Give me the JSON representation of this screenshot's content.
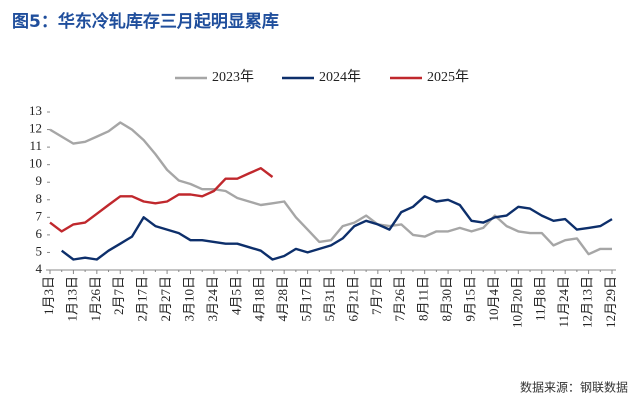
{
  "chart_data": {
    "type": "line",
    "title": "图5：华东冷轧库存三月起明显累库",
    "source": "数据来源：钢联数据",
    "categories": [
      "1月3日",
      null,
      "1月13日",
      null,
      "1月26日",
      null,
      "2月7日",
      null,
      "2月17日",
      null,
      "2月27日",
      null,
      "3月10日",
      null,
      "3月24日",
      null,
      "4月5日",
      null,
      "4月18日",
      null,
      "4月28日",
      null,
      "5月17日",
      null,
      "5月31日",
      null,
      "6月21日",
      null,
      "7月7日",
      null,
      "7月26日",
      null,
      "8月11日",
      null,
      "8月30日",
      null,
      "9月15日",
      null,
      "10月4日",
      null,
      "10月20日",
      null,
      "11月8日",
      null,
      "11月24日",
      null,
      "12月13日",
      null,
      "12月29日"
    ],
    "series": [
      {
        "name": "2023年",
        "color": "#a6a6a6",
        "values": [
          12.0,
          11.6,
          11.2,
          11.3,
          11.6,
          11.9,
          12.4,
          12.0,
          11.4,
          10.6,
          9.7,
          9.1,
          8.9,
          8.6,
          8.6,
          8.5,
          8.1,
          7.9,
          7.7,
          7.8,
          7.9,
          7.0,
          6.3,
          5.6,
          5.7,
          6.5,
          6.7,
          7.1,
          6.6,
          6.5,
          6.6,
          6.0,
          5.9,
          6.2,
          6.2,
          6.4,
          6.2,
          6.4,
          7.1,
          6.5,
          6.2,
          6.1,
          6.1,
          5.4,
          5.7,
          5.8,
          4.9,
          5.2,
          5.2
        ]
      },
      {
        "name": "2024年",
        "color": "#0d2f6b",
        "values": [
          null,
          5.1,
          4.6,
          4.7,
          4.6,
          5.1,
          5.5,
          5.9,
          7.0,
          6.5,
          6.3,
          6.1,
          5.7,
          5.7,
          5.6,
          5.5,
          5.5,
          5.3,
          5.1,
          4.6,
          4.8,
          5.2,
          5.0,
          5.2,
          5.4,
          5.8,
          6.5,
          6.8,
          6.6,
          6.3,
          7.3,
          7.6,
          8.2,
          7.9,
          8.0,
          7.7,
          6.8,
          6.7,
          7.0,
          7.1,
          7.6,
          7.5,
          7.1,
          6.8,
          6.9,
          6.3,
          6.4,
          6.5,
          6.9
        ]
      },
      {
        "name": "2025年",
        "color": "#c0282d",
        "values": [
          6.7,
          6.2,
          6.6,
          6.7,
          7.2,
          7.7,
          8.2,
          8.2,
          7.9,
          7.8,
          7.9,
          8.3,
          8.3,
          8.2,
          8.5,
          9.2,
          9.2,
          9.5,
          9.8,
          9.3,
          null,
          null,
          null,
          null,
          null,
          null,
          null,
          null,
          null,
          null,
          null,
          null,
          null,
          null,
          null,
          null,
          null,
          null,
          null,
          null,
          null,
          null,
          null,
          null,
          null,
          null,
          null,
          null,
          null
        ]
      }
    ],
    "ylim": [
      4,
      13
    ],
    "yticks": [
      4,
      5,
      6,
      7,
      8,
      9,
      10,
      11,
      12,
      13
    ],
    "legend": "top"
  }
}
